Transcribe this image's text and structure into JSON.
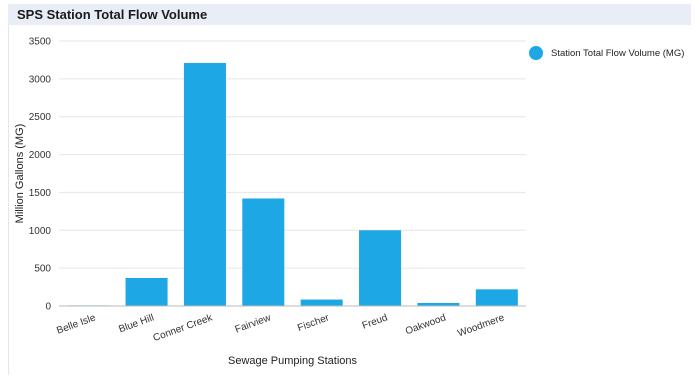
{
  "header": {
    "title": "SPS Station Total Flow Volume"
  },
  "colors": {
    "bar": "#1da7e5",
    "grid": "#e6e6e6",
    "axis": "#bbbbbb"
  },
  "legend": {
    "position": "top-right",
    "icon": "circle"
  },
  "chart_data": {
    "type": "bar",
    "title": "SPS Station Total Flow Volume",
    "xlabel": "Sewage Pumping Stations",
    "ylabel": "Million Gallons (MG)",
    "categories": [
      "Belle Isle",
      "Blue Hill",
      "Conner Creek",
      "Fairview",
      "Fischer",
      "Freud",
      "Oakwood",
      "Woodmere"
    ],
    "series": [
      {
        "name": "Station Total Flow Volume (MG)",
        "values": [
          8,
          370,
          3210,
          1420,
          85,
          1000,
          40,
          220
        ]
      }
    ],
    "ylim": [
      0,
      3500
    ],
    "yticks": [
      0,
      500,
      1000,
      1500,
      2000,
      2500,
      3000,
      3500
    ],
    "grid": true
  }
}
